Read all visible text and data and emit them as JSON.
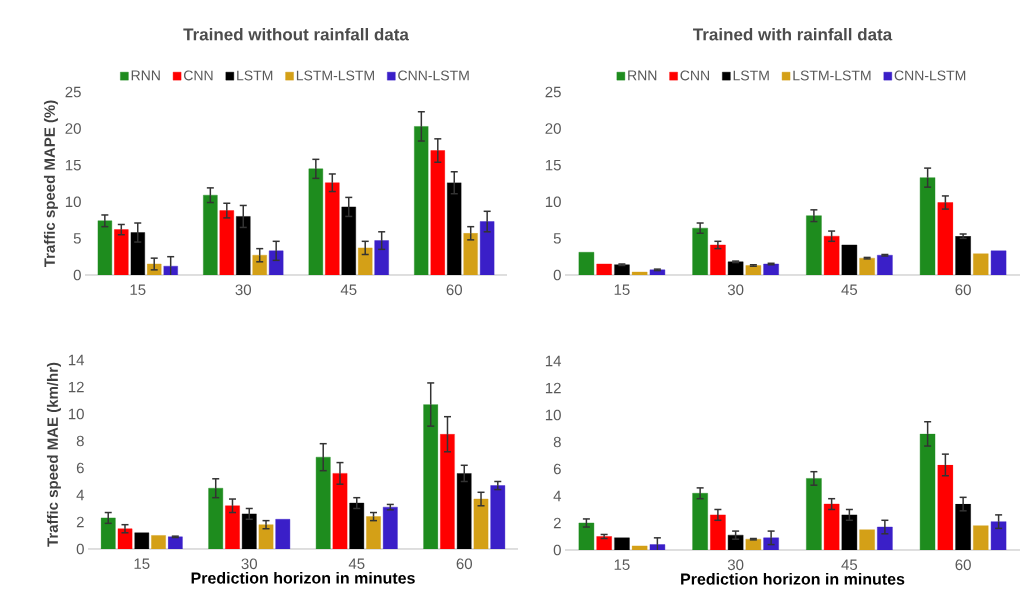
{
  "chart_data": [
    {
      "type": "bar",
      "title": "Trained without rainfall data",
      "ylabel": "Traffic speed MAPE (%)",
      "categories": [
        "15",
        "30",
        "45",
        "60"
      ],
      "ylim": [
        0,
        25
      ],
      "yticks": [
        0,
        5,
        10,
        15,
        20,
        25
      ],
      "legend": "top",
      "series": [
        {
          "name": "RNN",
          "color": "#1e8c1e",
          "values": [
            7.4,
            10.9,
            14.5,
            20.3
          ],
          "errors": [
            0.8,
            1.0,
            1.3,
            2.0
          ]
        },
        {
          "name": "CNN",
          "color": "#ff0000",
          "values": [
            6.2,
            8.8,
            12.6,
            17.0
          ],
          "errors": [
            0.7,
            1.0,
            1.2,
            1.6
          ]
        },
        {
          "name": "LSTM",
          "color": "#000000",
          "values": [
            5.8,
            8.0,
            9.3,
            12.6
          ],
          "errors": [
            1.3,
            1.5,
            1.3,
            1.5
          ]
        },
        {
          "name": "LSTM-LSTM",
          "color": "#d4a017",
          "values": [
            1.5,
            2.7,
            3.7,
            5.7
          ],
          "errors": [
            0.8,
            0.9,
            0.9,
            0.9
          ]
        },
        {
          "name": "CNN-LSTM",
          "color": "#3a1fc8",
          "values": [
            1.2,
            3.3,
            4.7,
            7.3
          ],
          "errors": [
            1.3,
            1.3,
            1.2,
            1.4
          ]
        }
      ]
    },
    {
      "type": "bar",
      "title": "Trained with rainfall data",
      "categories": [
        "15",
        "30",
        "45",
        "60"
      ],
      "ylim": [
        0,
        25
      ],
      "yticks": [
        0,
        5,
        10,
        15,
        20,
        25
      ],
      "legend": "top",
      "series": [
        {
          "name": "RNN",
          "color": "#1e8c1e",
          "values": [
            3.1,
            6.4,
            8.1,
            13.3
          ],
          "errors": [
            null,
            0.7,
            0.8,
            1.3
          ]
        },
        {
          "name": "CNN",
          "color": "#ff0000",
          "values": [
            1.5,
            4.1,
            5.3,
            9.9
          ],
          "errors": [
            null,
            0.5,
            0.7,
            0.9
          ]
        },
        {
          "name": "LSTM",
          "color": "#000000",
          "values": [
            1.4,
            1.8,
            4.1,
            5.3
          ],
          "errors": [
            0.1,
            0.1,
            null,
            0.3
          ]
        },
        {
          "name": "LSTM-LSTM",
          "color": "#d4a017",
          "values": [
            0.4,
            1.3,
            2.3,
            2.9
          ],
          "errors": [
            null,
            0.1,
            0.1,
            null
          ]
        },
        {
          "name": "CNN-LSTM",
          "color": "#3a1fc8",
          "values": [
            0.7,
            1.5,
            2.7,
            3.3
          ],
          "errors": [
            0.1,
            0.1,
            0.1,
            null
          ]
        }
      ]
    },
    {
      "type": "bar",
      "xlabel": "Prediction horizon in minutes",
      "ylabel": "Traffic speed MAE (km/hr)",
      "categories": [
        "15",
        "30",
        "45",
        "60"
      ],
      "ylim": [
        0,
        14
      ],
      "yticks": [
        0,
        2,
        4,
        6,
        8,
        10,
        12,
        14
      ],
      "series": [
        {
          "color": "#1e8c1e",
          "values": [
            2.3,
            4.5,
            6.8,
            10.7
          ],
          "errors": [
            0.4,
            0.7,
            1.0,
            1.6
          ]
        },
        {
          "color": "#ff0000",
          "values": [
            1.5,
            3.2,
            5.6,
            8.5
          ],
          "errors": [
            0.3,
            0.5,
            0.8,
            1.3
          ]
        },
        {
          "color": "#000000",
          "values": [
            1.2,
            2.6,
            3.4,
            5.6
          ],
          "errors": [
            null,
            0.4,
            0.4,
            0.6
          ]
        },
        {
          "color": "#d4a017",
          "values": [
            1.0,
            1.8,
            2.4,
            3.7
          ],
          "errors": [
            null,
            0.3,
            0.3,
            0.5
          ]
        },
        {
          "color": "#3a1fc8",
          "values": [
            0.9,
            2.2,
            3.1,
            4.7
          ],
          "errors": [
            0.05,
            null,
            0.2,
            0.3
          ]
        }
      ]
    },
    {
      "type": "bar",
      "xlabel": "Prediction horizon in minutes",
      "categories": [
        "15",
        "30",
        "45",
        "60"
      ],
      "ylim": [
        0,
        14
      ],
      "yticks": [
        0,
        2,
        4,
        6,
        8,
        10,
        12,
        14
      ],
      "series": [
        {
          "color": "#1e8c1e",
          "values": [
            2.0,
            4.2,
            5.3,
            8.6
          ],
          "errors": [
            0.3,
            0.4,
            0.5,
            0.9
          ]
        },
        {
          "color": "#ff0000",
          "values": [
            1.0,
            2.6,
            3.4,
            6.3
          ],
          "errors": [
            0.15,
            0.4,
            0.4,
            0.8
          ]
        },
        {
          "color": "#000000",
          "values": [
            0.9,
            1.1,
            2.6,
            3.4
          ],
          "errors": [
            null,
            0.3,
            0.4,
            0.5
          ]
        },
        {
          "color": "#d4a017",
          "values": [
            0.3,
            0.8,
            1.5,
            1.8
          ],
          "errors": [
            null,
            0.05,
            null,
            null
          ]
        },
        {
          "color": "#3a1fc8",
          "values": [
            0.4,
            0.9,
            1.7,
            2.1
          ],
          "errors": [
            0.5,
            0.5,
            0.5,
            0.5
          ]
        }
      ]
    }
  ]
}
